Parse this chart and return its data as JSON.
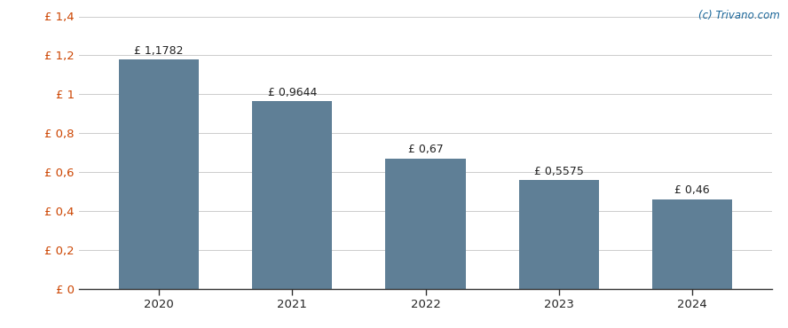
{
  "years": [
    "2020",
    "2021",
    "2022",
    "2023",
    "2024"
  ],
  "values": [
    1.1782,
    0.9644,
    0.67,
    0.5575,
    0.46
  ],
  "labels": [
    "£ 1,1782",
    "£ 0,9644",
    "£ 0,67",
    "£ 0,5575",
    "£ 0,46"
  ],
  "bar_color": "#5f7f96",
  "background_color": "#ffffff",
  "grid_color": "#cccccc",
  "ylim": [
    0,
    1.4
  ],
  "yticks": [
    0,
    0.2,
    0.4,
    0.6,
    0.8,
    1.0,
    1.2,
    1.4
  ],
  "ytick_labels": [
    "£ 0",
    "£ 0,2",
    "£ 0,4",
    "£ 0,6",
    "£ 0,8",
    "£ 1",
    "£ 1,2",
    "£ 1,4"
  ],
  "watermark": "(c) Trivano.com",
  "watermark_color": "#1a6699",
  "label_color": "#222222",
  "ytick_color": "#cc4400",
  "xtick_color": "#222222",
  "bar_width": 0.6
}
